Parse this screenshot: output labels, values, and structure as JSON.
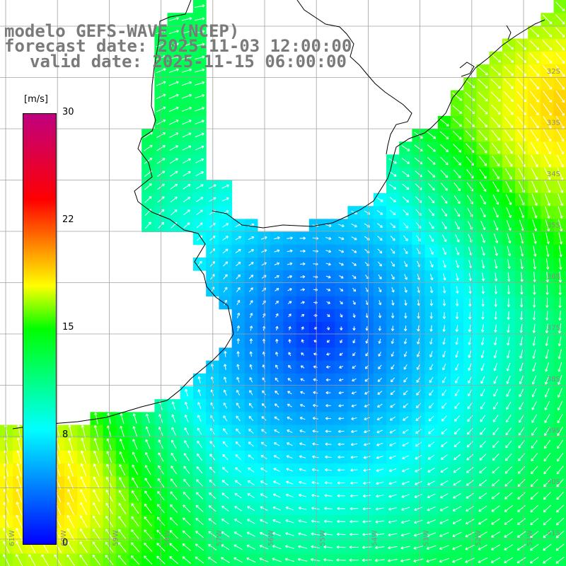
{
  "header": {
    "line1": "modelo GEFS-WAVE (NCEP)",
    "line2": "forecast date: 2025-11-03 12:00:00",
    "line3": "valid date: 2025-11-15 06:00:00"
  },
  "colorbar": {
    "units": "[m/s]",
    "ticks": [
      "30",
      "22",
      "15",
      "8",
      "0"
    ],
    "colors": [
      "#0000ff",
      "#00ffff",
      "#00ff00",
      "#ffff00",
      "#ff0000",
      "#c00080"
    ]
  },
  "map": {
    "lat_labels": [
      "32S",
      "33S",
      "34S",
      "35S",
      "36S",
      "37S",
      "38S",
      "39S",
      "40S",
      "41S"
    ],
    "lon_labels": [
      "61W",
      "60W",
      "59W",
      "58W",
      "57W",
      "56W",
      "55W",
      "54W",
      "53W",
      "52W",
      "51W"
    ],
    "colors": {
      "ocean_low": "#0000ff",
      "ocean_mid": "#00ffff",
      "ocean_high": "#00ff00",
      "land": "#ffffff",
      "grid": "#a0a0a0",
      "coast": "#000000",
      "arrows": "#ffffff"
    }
  }
}
